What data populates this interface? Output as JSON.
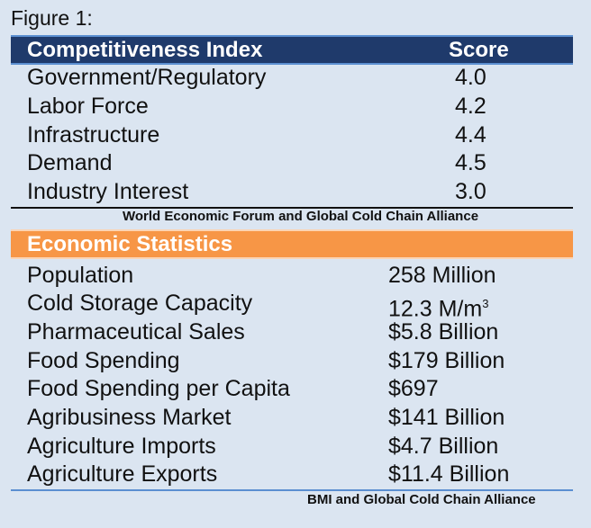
{
  "figure_label": "Figure 1:",
  "competitiveness": {
    "header_label": "Competitiveness Index",
    "header_score": "Score",
    "rows": [
      {
        "label": "Government/Regulatory",
        "score": "4.0"
      },
      {
        "label": "Labor Force",
        "score": "4.2"
      },
      {
        "label": "Infrastructure",
        "score": "4.4"
      },
      {
        "label": "Demand",
        "score": "4.5"
      },
      {
        "label": "Industry Interest",
        "score": "3.0"
      }
    ],
    "source": "World Economic Forum and Global Cold Chain Alliance"
  },
  "economic": {
    "header_label": "Economic Statistics",
    "rows": [
      {
        "label": "Population",
        "value": "258 Million"
      },
      {
        "label": "Cold Storage Capacity",
        "value": "12.3 M/m",
        "value_sup": "3"
      },
      {
        "label": "Pharmaceutical Sales",
        "value": "$5.8 Billion"
      },
      {
        "label": "Food Spending",
        "value": "$179 Billion"
      },
      {
        "label": "Food Spending per Capita",
        "value": "$697"
      },
      {
        "label": "Agribusiness Market",
        "value": "$141 Billion"
      },
      {
        "label": "Agriculture Imports",
        "value": "$4.7 Billion"
      },
      {
        "label": "Agriculture Exports",
        "value": "$11.4 Billion"
      }
    ],
    "source": "BMI and Global Cold Chain Alliance"
  },
  "colors": {
    "background": "#dbe5f1",
    "header_navy": "#1f3a6b",
    "header_orange": "#f79646",
    "rule_blue": "#5b8fd1"
  }
}
